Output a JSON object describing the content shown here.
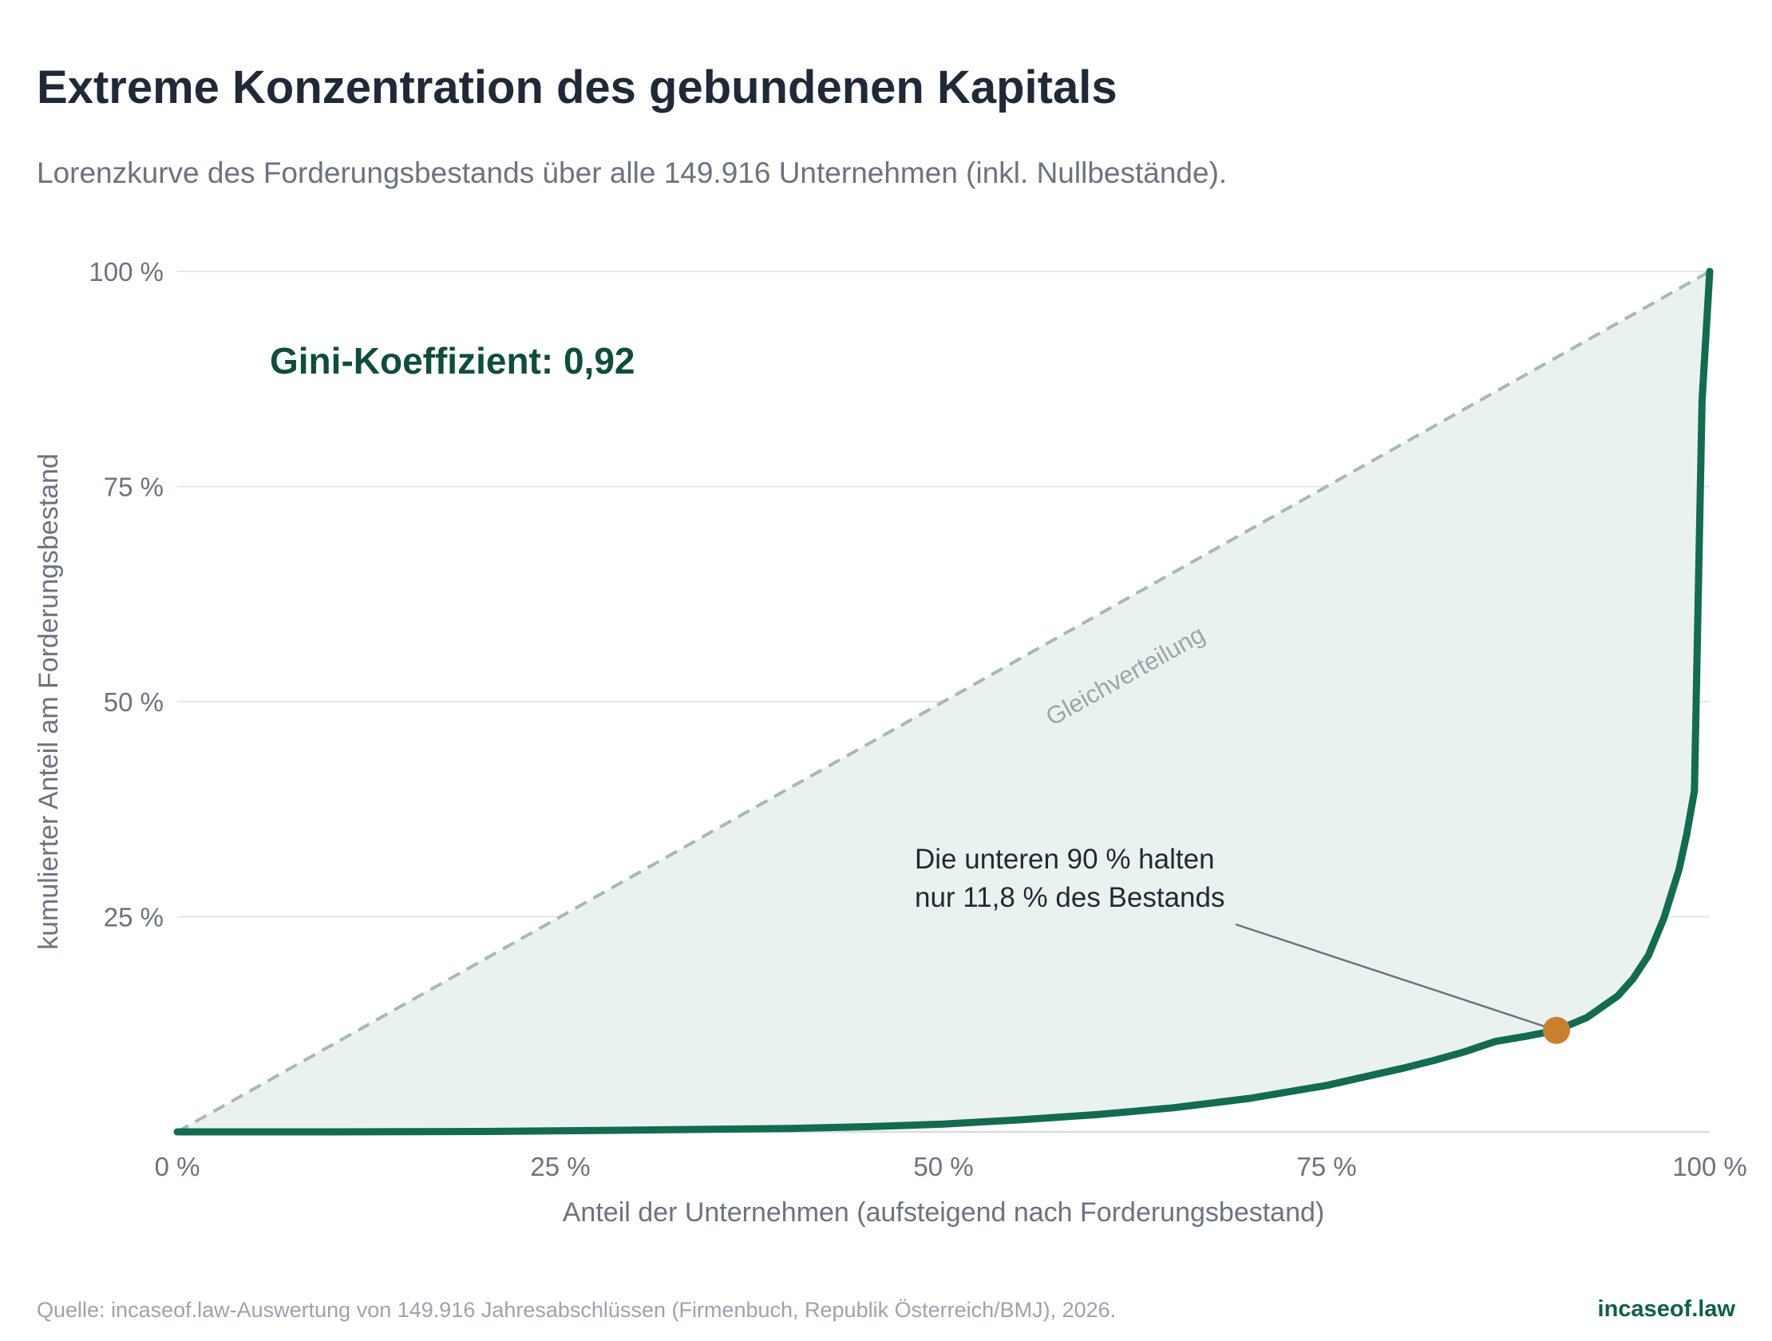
{
  "title": "Extreme Konzentration des gebundenen Kapitals",
  "subtitle": "Lorenzkurve des Forderungsbestands über alle 149.916 Unternehmen (inkl. Nullbestände).",
  "footer": {
    "source": "Quelle: incaseof.law-Auswertung von 149.916 Jahresabschlüssen (Firmenbuch, Republik Österreich/BMJ), 2026.",
    "brand": "incaseof.law"
  },
  "chart_data": {
    "type": "line",
    "xlabel": "Anteil der Unternehmen (aufsteigend nach Forderungsbestand)",
    "ylabel": "kumulierter Anteil am Forderungsbestand",
    "xlim": [
      0,
      100
    ],
    "ylim": [
      0,
      100
    ],
    "x_ticks": [
      0,
      25,
      50,
      75,
      100
    ],
    "x_tick_labels": [
      "0 %",
      "25 %",
      "50 %",
      "75 %",
      "100 %"
    ],
    "y_ticks": [
      25,
      50,
      75,
      100
    ],
    "y_tick_labels": [
      "25 %",
      "50 %",
      "75 %",
      "100 %"
    ],
    "grid": "horizontal",
    "series": [
      {
        "name": "",
        "color": "#136b52",
        "x": [
          0,
          10,
          20,
          30,
          40,
          45,
          50,
          55,
          60,
          65,
          70,
          75,
          80,
          82,
          84,
          86,
          88,
          90,
          92,
          94,
          95,
          96,
          97,
          98,
          98.5,
          99,
          99.5,
          100
        ],
        "y": [
          0,
          0,
          0.05,
          0.2,
          0.4,
          0.6,
          0.9,
          1.4,
          2.0,
          2.8,
          3.9,
          5.4,
          7.4,
          8.3,
          9.3,
          10.5,
          11.1,
          11.8,
          13.3,
          15.8,
          17.8,
          20.5,
          24.8,
          30.5,
          34.6,
          39.6,
          85,
          100
        ]
      }
    ],
    "equality_line": {
      "x": [
        0,
        100
      ],
      "y": [
        0,
        100
      ],
      "label": "Gleichverteilung",
      "color": "#a7b7bb"
    },
    "fill_color": "#eaf2ef",
    "gini_label": "Gini-Koeffizient: 0,92",
    "annotation": {
      "lines": [
        "Die unteren 90 % halten",
        "nur 11,8 % des Bestands"
      ],
      "point": {
        "x": 90,
        "y": 11.8
      },
      "marker_color": "#c8802f"
    }
  }
}
